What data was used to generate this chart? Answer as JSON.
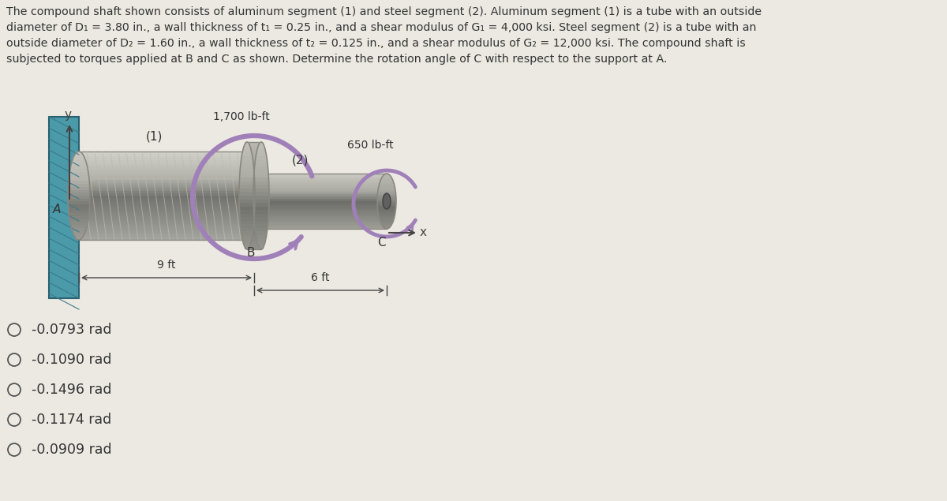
{
  "bg_color": "#ece9e2",
  "text_color": "#333333",
  "title_lines": [
    "The compound shaft shown consists of aluminum segment (1) and steel segment (2). Aluminum segment (1) is a tube with an outside",
    "diameter of D₁ = 3.80 in., a wall thickness of t₁ = 0.25 in., and a shear modulus of G₁ = 4,000 ksi. Steel segment (2) is a tube with an",
    "outside diameter of D₂ = 1.60 in., a wall thickness of t₂ = 0.125 in., and a shear modulus of G₂ = 12,000 ksi. The compound shaft is",
    "subjected to torques applied at B and C as shown. Determine the rotation angle of C with respect to the support at A."
  ],
  "choices": [
    "-0.0793 rad",
    "-0.1090 rad",
    "-0.1496 rad",
    "-0.1174 rad",
    "-0.0909 rad"
  ],
  "wall_color": "#4a9aaa",
  "wall_edge_color": "#2a6070",
  "shaft1_color_top": "#e0e0d8",
  "shaft1_color_mid": "#d0d0c8",
  "shaft1_color_bot": "#b8b8b0",
  "shaft2_color_top": "#d8d8d0",
  "shaft2_color_mid": "#c8c8c0",
  "shaft2_color_bot": "#a8a8a0",
  "hatch_color": "#c0c0b8",
  "torque_color": "#a080b8",
  "dim_color": "#444444",
  "axis_color": "#444444"
}
